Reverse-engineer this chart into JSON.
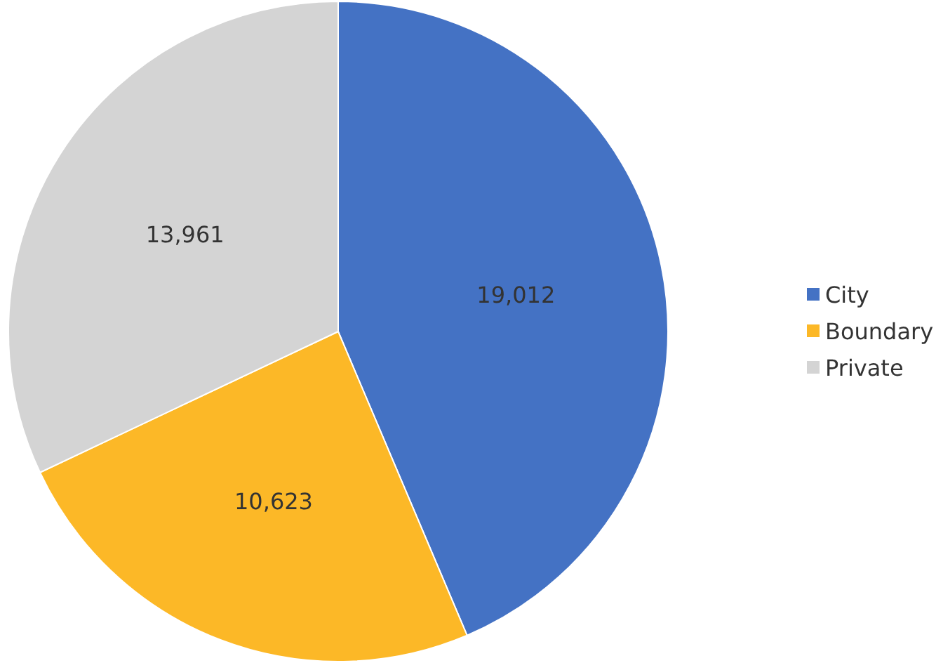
{
  "chart_data": {
    "type": "pie",
    "categories": [
      "City",
      "Boundary",
      "Private"
    ],
    "values": [
      19012,
      10623,
      13961
    ],
    "value_labels": [
      "19,012",
      "10,623",
      "13,961"
    ],
    "colors": [
      "#4472c4",
      "#fcb827",
      "#d4d4d4"
    ],
    "legend": "right"
  }
}
